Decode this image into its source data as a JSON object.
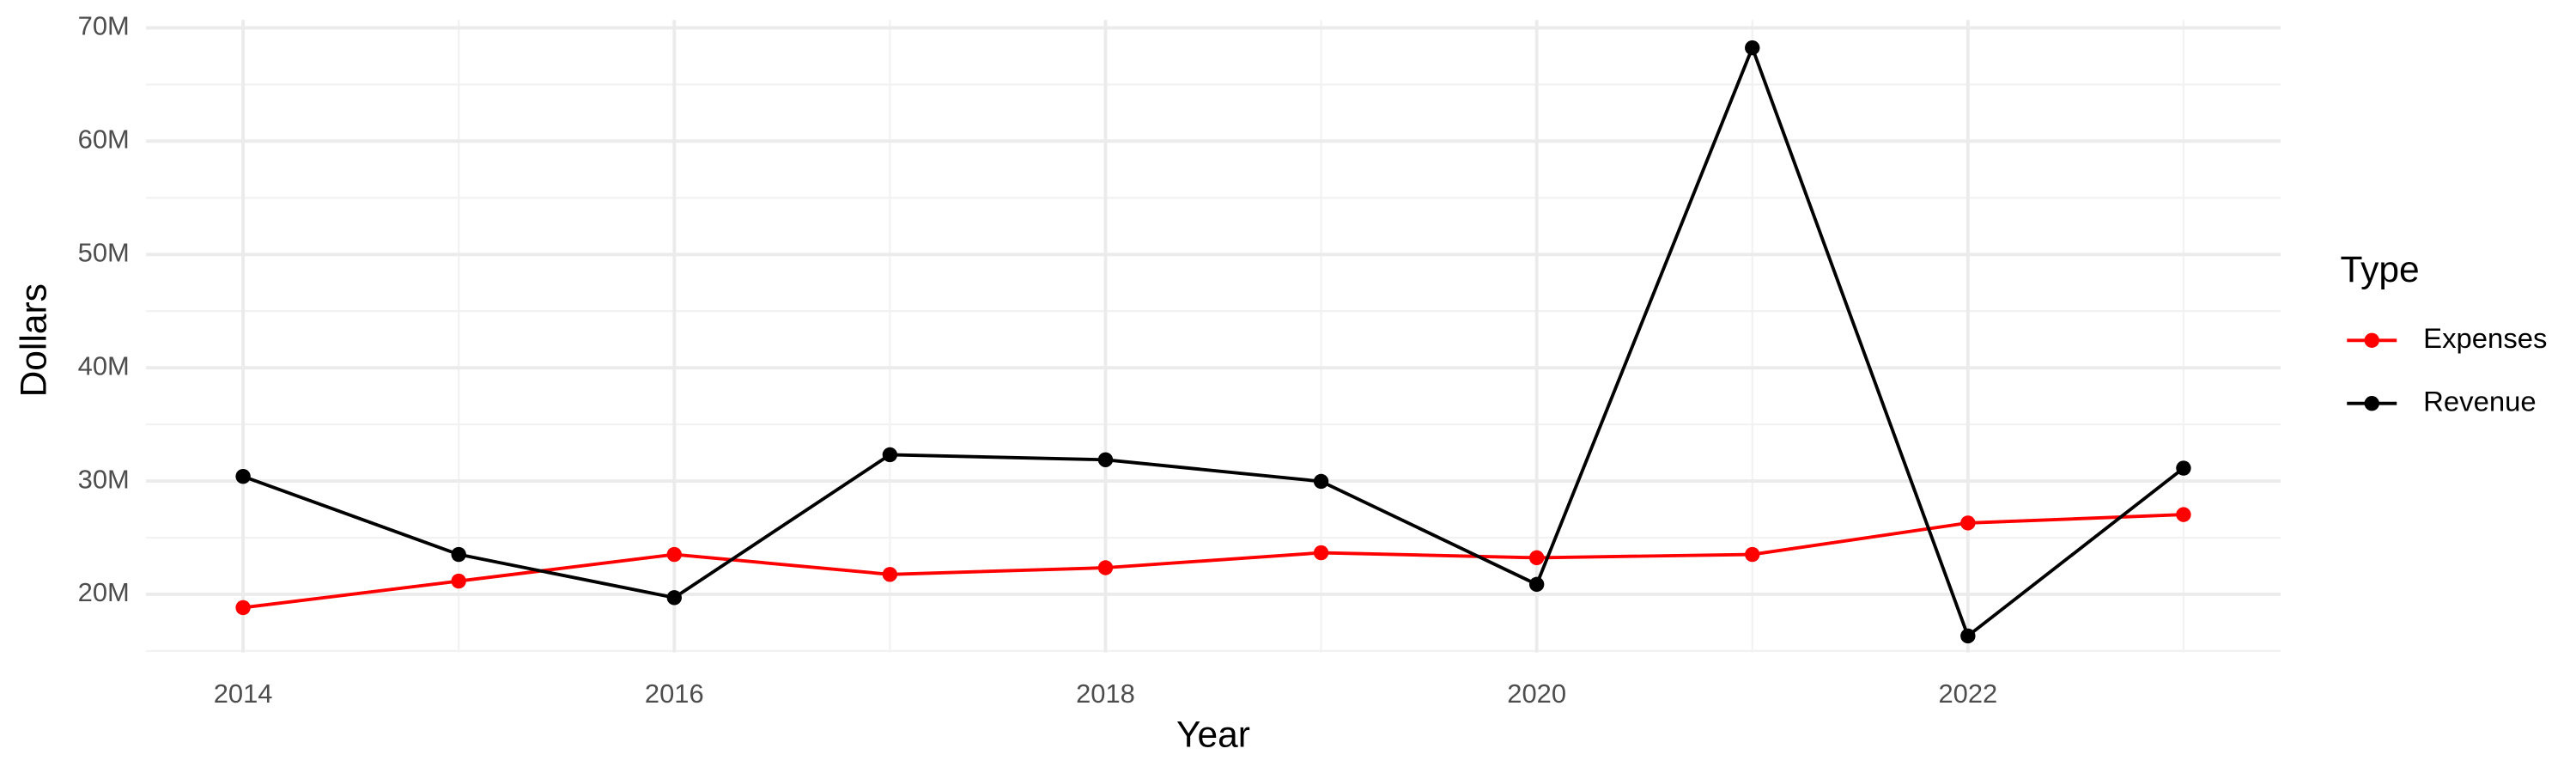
{
  "chart_data": {
    "type": "line",
    "x_label": "Year",
    "y_label": "Dollars",
    "legend_title": "Type",
    "x": [
      2014,
      2015,
      2016,
      2017,
      2018,
      2019,
      2020,
      2021,
      2022,
      2023
    ],
    "series": [
      {
        "name": "Expenses",
        "color": "#ff0000",
        "values": [
          18830000,
          21170000,
          23520000,
          21760000,
          22350000,
          23670000,
          23230000,
          23520000,
          26300000,
          27040000
        ]
      },
      {
        "name": "Revenue",
        "color": "#000000",
        "values": [
          30410000,
          23520000,
          19710000,
          32320000,
          31880000,
          29970000,
          20880000,
          68240000,
          16330000,
          31140000
        ]
      }
    ],
    "xlim": [
      2013.55,
      2023.45
    ],
    "xticks": [
      2014,
      2016,
      2018,
      2020,
      2022
    ],
    "ylim": [
      14870000,
      70700000
    ],
    "yticks": [
      {
        "value": 20000000,
        "label": "20M"
      },
      {
        "value": 30000000,
        "label": "30M"
      },
      {
        "value": 40000000,
        "label": "40M"
      },
      {
        "value": 50000000,
        "label": "50M"
      },
      {
        "value": 60000000,
        "label": "60M"
      },
      {
        "value": 70000000,
        "label": "70M"
      }
    ],
    "grid": true,
    "legend": "right"
  }
}
